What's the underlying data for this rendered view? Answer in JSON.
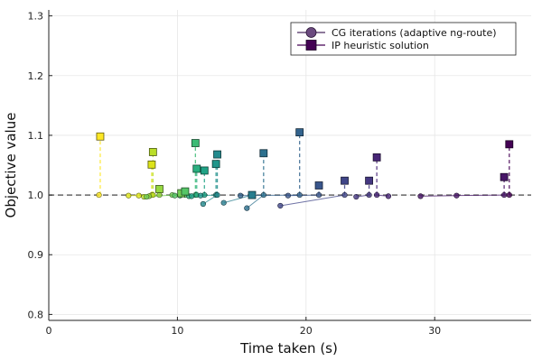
{
  "chart_data": {
    "type": "scatter",
    "title": "",
    "xlabel": "Time taken (s)",
    "ylabel": "Objective value",
    "xlim": [
      0,
      37.5
    ],
    "ylim": [
      0.79,
      1.31
    ],
    "xticks": [
      0,
      10,
      20,
      30
    ],
    "yticks": [
      0.8,
      0.9,
      1.0,
      1.1,
      1.2,
      1.3
    ],
    "x_tick_labels": [
      "0",
      "10",
      "20",
      "30"
    ],
    "y_tick_labels": [
      "0.8",
      "0.9",
      "1.0",
      "1.1",
      "1.2",
      "1.3"
    ],
    "grid": true,
    "reference_line_y": 1.0,
    "legend": {
      "position": "top-right",
      "entries": [
        {
          "label": "CG iterations (adaptive ng-route)",
          "marker": "circle",
          "color": "#4b2a5f"
        },
        {
          "label": "IP heuristic solution",
          "marker": "square",
          "color": "#440154"
        }
      ]
    },
    "series": [
      {
        "cg_iterations": [
          [
            3.9,
            1.0
          ]
        ],
        "ip_solution": [
          4.0,
          1.098
        ],
        "color": "#fde725"
      },
      {
        "cg_iterations": [
          [
            6.2,
            0.999
          ],
          [
            7.0,
            0.999
          ],
          [
            8.0,
            1.0
          ]
        ],
        "ip_solution": [
          8.0,
          1.051
        ],
        "color": "#dde318"
      },
      {
        "cg_iterations": [
          [
            7.4,
            0.997
          ],
          [
            8.1,
            1.0
          ]
        ],
        "ip_solution": [
          8.1,
          1.072
        ],
        "color": "#bade28"
      },
      {
        "cg_iterations": [
          [
            7.8,
            0.998
          ],
          [
            8.6,
            1.0
          ]
        ],
        "ip_solution": [
          8.6,
          1.01
        ],
        "color": "#95d840"
      },
      {
        "cg_iterations": [
          [
            7.6,
            0.997
          ],
          [
            9.6,
            1.0
          ],
          [
            10.3,
            1.0
          ]
        ],
        "ip_solution": [
          10.3,
          1.003
        ],
        "color": "#73d055"
      },
      {
        "cg_iterations": [
          [
            9.8,
            0.999
          ],
          [
            10.6,
            1.0
          ]
        ],
        "ip_solution": [
          10.6,
          1.006
        ],
        "color": "#55c667"
      },
      {
        "cg_iterations": [
          [
            10.2,
            0.999
          ],
          [
            11.4,
            1.0
          ]
        ],
        "ip_solution": [
          11.4,
          1.087
        ],
        "color": "#3cbb75"
      },
      {
        "cg_iterations": [
          [
            10.9,
            0.998
          ],
          [
            11.5,
            1.0
          ]
        ],
        "ip_solution": [
          11.5,
          1.044
        ],
        "color": "#29af7f"
      },
      {
        "cg_iterations": [
          [
            11.1,
            0.998
          ],
          [
            12.1,
            1.0
          ]
        ],
        "ip_solution": [
          12.1,
          1.041
        ],
        "color": "#20a386"
      },
      {
        "cg_iterations": [
          [
            11.8,
            0.999
          ],
          [
            13.0,
            1.0
          ]
        ],
        "ip_solution": [
          13.0,
          1.052
        ],
        "color": "#1f968b"
      },
      {
        "cg_iterations": [
          [
            12.0,
            0.985
          ],
          [
            13.1,
            1.0
          ]
        ],
        "ip_solution": [
          13.1,
          1.068
        ],
        "color": "#238a8d"
      },
      {
        "cg_iterations": [
          [
            13.6,
            0.987
          ],
          [
            15.8,
            1.0
          ]
        ],
        "ip_solution": [
          15.8,
          1.0
        ],
        "color": "#287d8e"
      },
      {
        "cg_iterations": [
          [
            15.4,
            0.978
          ],
          [
            16.7,
            1.0
          ]
        ],
        "ip_solution": [
          16.7,
          1.07
        ],
        "color": "#2d708e"
      },
      {
        "cg_iterations": [
          [
            14.9,
            0.999
          ],
          [
            19.5,
            1.0
          ]
        ],
        "ip_solution": [
          19.5,
          1.105
        ],
        "color": "#33638d"
      },
      {
        "cg_iterations": [
          [
            18.6,
            0.999
          ],
          [
            21.0,
            1.0
          ]
        ],
        "ip_solution": [
          21.0,
          1.016
        ],
        "color": "#39568c"
      },
      {
        "cg_iterations": [
          [
            18.0,
            0.982
          ],
          [
            23.0,
            1.0
          ]
        ],
        "ip_solution": [
          23.0,
          1.024
        ],
        "color": "#404688"
      },
      {
        "cg_iterations": [
          [
            23.9,
            0.997
          ],
          [
            24.9,
            1.0
          ]
        ],
        "ip_solution": [
          24.9,
          1.024
        ],
        "color": "#453781"
      },
      {
        "cg_iterations": [
          [
            26.4,
            0.998
          ],
          [
            25.5,
            1.0
          ]
        ],
        "ip_solution": [
          25.5,
          1.063
        ],
        "color": "#482677"
      },
      {
        "cg_iterations": [
          [
            28.9,
            0.998
          ],
          [
            31.7,
            0.999
          ],
          [
            35.4,
            1.0
          ]
        ],
        "ip_solution": [
          35.4,
          1.03
        ],
        "color": "#481668"
      },
      {
        "cg_iterations": [
          [
            35.8,
            1.0
          ]
        ],
        "ip_solution": [
          35.8,
          1.085
        ],
        "color": "#440154"
      }
    ]
  }
}
